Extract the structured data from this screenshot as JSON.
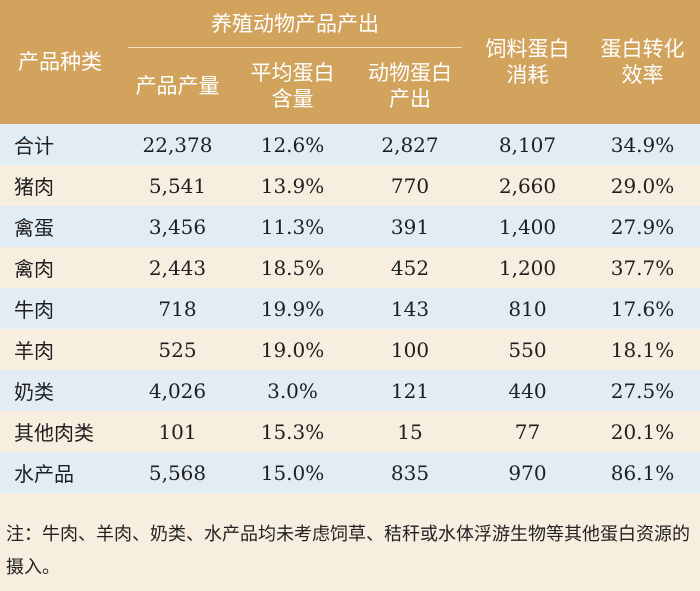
{
  "header": {
    "category": "产品种类",
    "group": "养殖动物产品产出",
    "output": "产品产量",
    "avg_protein_1": "平均蛋白",
    "avg_protein_2": "含量",
    "animal_protein_1": "动物蛋白",
    "animal_protein_2": "产出",
    "feed_protein_1": "饲料蛋白",
    "feed_protein_2": "消耗",
    "efficiency_1": "蛋白转化",
    "efficiency_2": "效率"
  },
  "rows": [
    {
      "name": "合计",
      "output": "22,378",
      "avg_protein": "12.6%",
      "animal_protein": "2,827",
      "feed_protein": "8,107",
      "efficiency": "34.9%"
    },
    {
      "name": "猪肉",
      "output": "5,541",
      "avg_protein": "13.9%",
      "animal_protein": "770",
      "feed_protein": "2,660",
      "efficiency": "29.0%"
    },
    {
      "name": "禽蛋",
      "output": "3,456",
      "avg_protein": "11.3%",
      "animal_protein": "391",
      "feed_protein": "1,400",
      "efficiency": "27.9%"
    },
    {
      "name": "禽肉",
      "output": "2,443",
      "avg_protein": "18.5%",
      "animal_protein": "452",
      "feed_protein": "1,200",
      "efficiency": "37.7%"
    },
    {
      "name": "牛肉",
      "output": "718",
      "avg_protein": "19.9%",
      "animal_protein": "143",
      "feed_protein": "810",
      "efficiency": "17.6%"
    },
    {
      "name": "羊肉",
      "output": "525",
      "avg_protein": "19.0%",
      "animal_protein": "100",
      "feed_protein": "550",
      "efficiency": "18.1%"
    },
    {
      "name": "奶类",
      "output": "4,026",
      "avg_protein": "3.0%",
      "animal_protein": "121",
      "feed_protein": "440",
      "efficiency": "27.5%"
    },
    {
      "name": "其他肉类",
      "output": "101",
      "avg_protein": "15.3%",
      "animal_protein": "15",
      "feed_protein": "77",
      "efficiency": "20.1%"
    },
    {
      "name": "水产品",
      "output": "5,568",
      "avg_protein": "15.0%",
      "animal_protein": "835",
      "feed_protein": "970",
      "efficiency": "86.1%"
    }
  ],
  "note": "注：牛肉、羊肉、奶类、水产品均未考虑饲草、秸秆或水体浮游生物等其他蛋白资源的摄入。",
  "colors": {
    "header_bg": "#d2a35c",
    "row_blue": "#e1ecf4",
    "row_cream": "#f8eedf"
  }
}
